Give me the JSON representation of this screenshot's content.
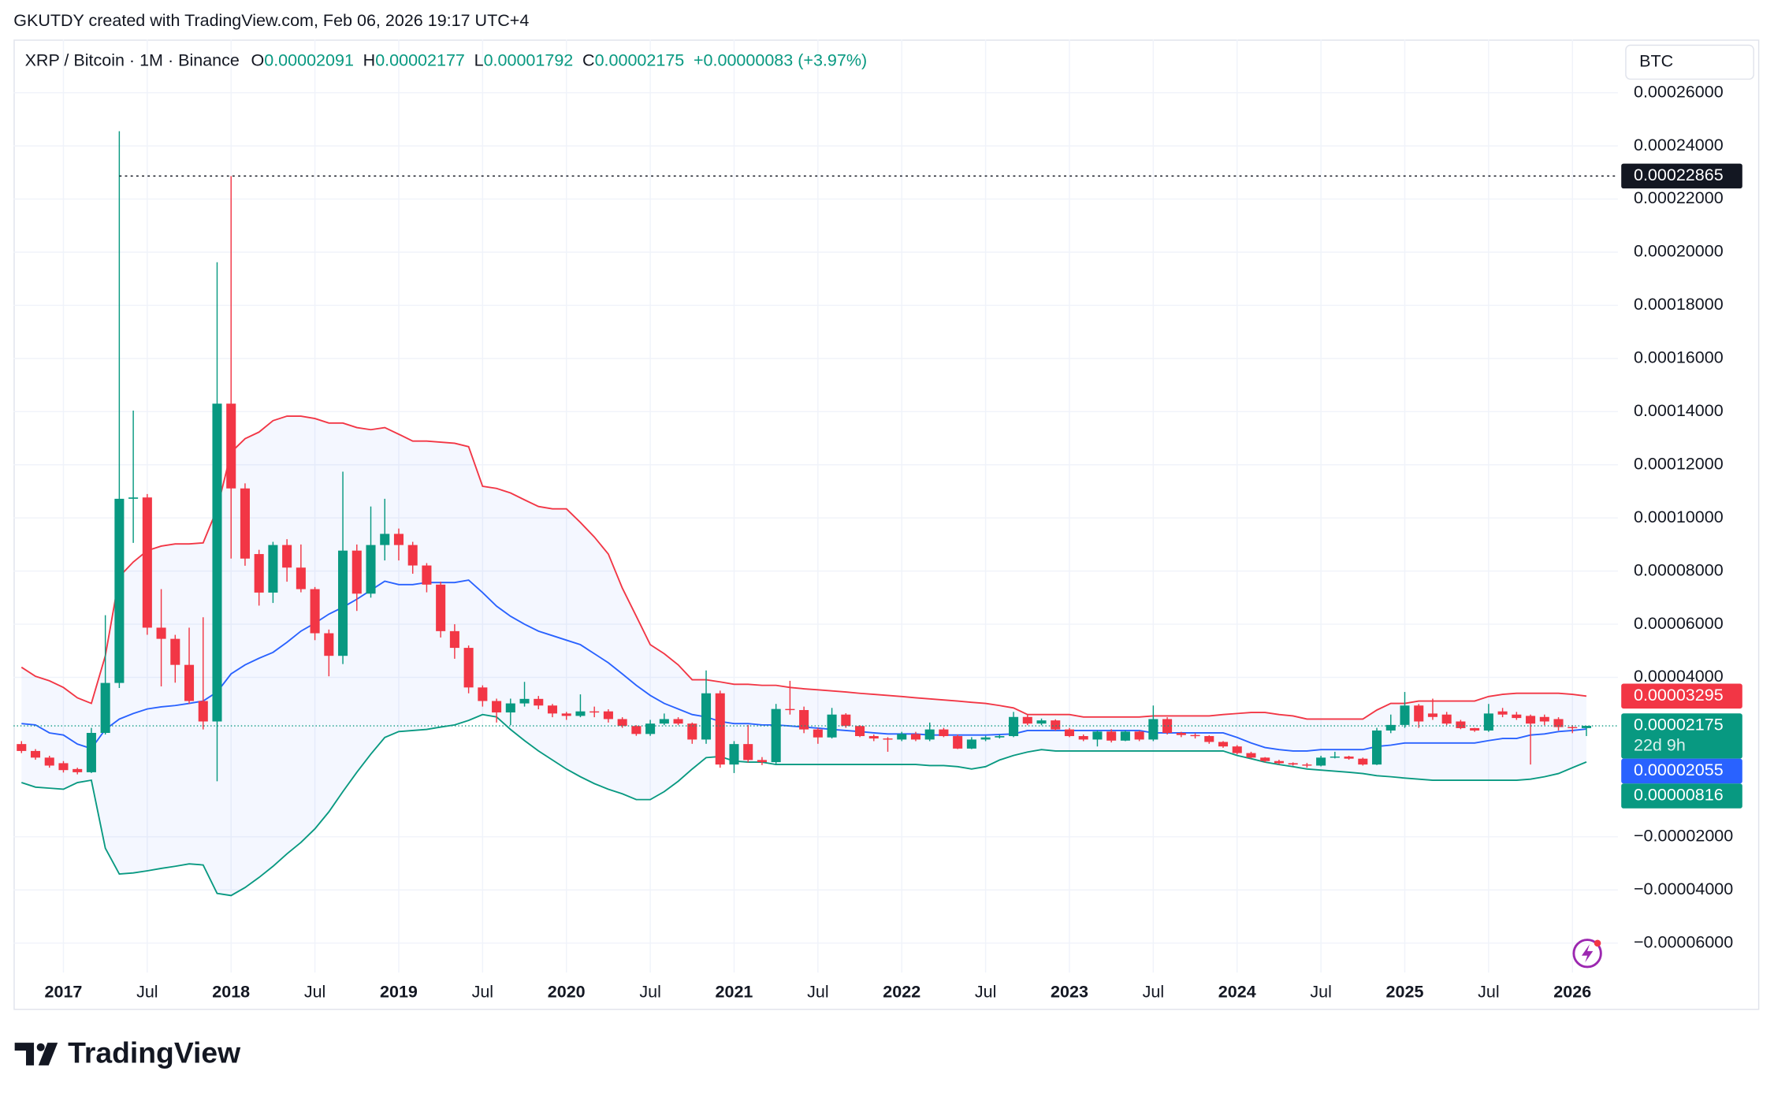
{
  "chart_data": {
    "type": "candlestick",
    "watermark": "GKUTDY created with TradingView.com, Feb 06, 2026 19:17 UTC+4",
    "symbol": "XRP / Bitcoin · 1M · Binance",
    "ohlc": [
      {
        "key": "O",
        "value": "0.00002091"
      },
      {
        "key": "H",
        "value": "0.00002177"
      },
      {
        "key": "L",
        "value": "0.00001792"
      },
      {
        "key": "C",
        "value": "0.00002175"
      }
    ],
    "change": "+0.00000083 (+3.97%)",
    "currency": "BTC",
    "brand": "TradingView",
    "up_color": "#089981",
    "down_color": "#f23645",
    "grid": true,
    "x": [
      "2016-10",
      "2016-11",
      "2016-12",
      "2017-01",
      "2017-02",
      "2017-03",
      "2017-04",
      "2017-05",
      "2017-06",
      "2017-07",
      "2017-08",
      "2017-09",
      "2017-10",
      "2017-11",
      "2017-12",
      "2018-01",
      "2018-02",
      "2018-03",
      "2018-04",
      "2018-05",
      "2018-06",
      "2018-07",
      "2018-08",
      "2018-09",
      "2018-10",
      "2018-11",
      "2018-12",
      "2019-01",
      "2019-02",
      "2019-03",
      "2019-04",
      "2019-05",
      "2019-06",
      "2019-07",
      "2019-08",
      "2019-09",
      "2019-10",
      "2019-11",
      "2019-12",
      "2020-01",
      "2020-02",
      "2020-03",
      "2020-04",
      "2020-05",
      "2020-06",
      "2020-07",
      "2020-08",
      "2020-09",
      "2020-10",
      "2020-11",
      "2020-12",
      "2021-01",
      "2021-02",
      "2021-03",
      "2021-04",
      "2021-05",
      "2021-06",
      "2021-07",
      "2021-08",
      "2021-09",
      "2021-10",
      "2021-11",
      "2021-12",
      "2022-01",
      "2022-02",
      "2022-03",
      "2022-04",
      "2022-05",
      "2022-06",
      "2022-07",
      "2022-08",
      "2022-09",
      "2022-10",
      "2022-11",
      "2022-12",
      "2023-01",
      "2023-02",
      "2023-03",
      "2023-04",
      "2023-05",
      "2023-06",
      "2023-07",
      "2023-08",
      "2023-09",
      "2023-10",
      "2023-11",
      "2023-12",
      "2024-01",
      "2024-02",
      "2024-03",
      "2024-04",
      "2024-05",
      "2024-06",
      "2024-07",
      "2024-08",
      "2024-09",
      "2024-10",
      "2024-11",
      "2024-12",
      "2025-01",
      "2025-02",
      "2025-03",
      "2025-04",
      "2025-05",
      "2025-06",
      "2025-07",
      "2025-08",
      "2025-09",
      "2025-10",
      "2025-11",
      "2025-12",
      "2026-01",
      "2026-02"
    ],
    "open": [
      1.49e-05,
      1.23e-05,
      9.8e-06,
      7.7e-06,
      5.5e-06,
      4.3e-06,
      1.91e-05,
      3.79e-05,
      0.0001072,
      0.0001077,
      5.87e-05,
      5.45e-05,
      4.47e-05,
      3.11e-05,
      2.34e-05,
      0.000143,
      0.0001111,
      8.64e-05,
      7.19e-05,
      8.98e-05,
      8.13e-05,
      7.32e-05,
      5.66e-05,
      4.81e-05,
      8.77e-05,
      7.15e-05,
      8.98e-05,
      9.4e-05,
      8.98e-05,
      8.21e-05,
      7.49e-05,
      5.74e-05,
      5.11e-05,
      3.62e-05,
      3.11e-05,
      2.68e-05,
      3.02e-05,
      3.19e-05,
      2.94e-05,
      2.64e-05,
      2.55e-05,
      2.72e-05,
      2.72e-05,
      2.43e-05,
      2.17e-05,
      1.87e-05,
      2.26e-05,
      2.43e-05,
      2.26e-05,
      1.66e-05,
      3.4e-05,
      7.2e-06,
      1.49e-05,
      8.9e-06,
      8.1e-06,
      2.81e-05,
      2.77e-05,
      2.04e-05,
      1.74e-05,
      2.6e-05,
      2.17e-05,
      1.79e-05,
      1.7e-05,
      1.66e-05,
      1.87e-05,
      1.66e-05,
      2.04e-05,
      1.79e-05,
      1.32e-05,
      1.66e-05,
      1.74e-05,
      1.79e-05,
      2.51e-05,
      2.26e-05,
      2.38e-05,
      2.04e-05,
      1.79e-05,
      1.66e-05,
      1.96e-05,
      1.62e-05,
      1.96e-05,
      1.66e-05,
      2.43e-05,
      1.91e-05,
      1.83e-05,
      1.79e-05,
      1.57e-05,
      1.4e-05,
      1.15e-05,
      9.8e-06,
      8.5e-06,
      7.7e-06,
      7.2e-06,
      6.8e-06,
      9.8e-06,
      1.02e-05,
      9.4e-06,
      7.2e-06,
      2e-05,
      2.21e-05,
      2.94e-05,
      2.64e-05,
      2.6e-05,
      2.34e-05,
      2.09e-05,
      2e-05,
      2.72e-05,
      2.6e-05,
      2.55e-05,
      2.51e-05,
      2.43e-05,
      2.13e-05,
      2.091e-05
    ],
    "high": [
      1.6e-05,
      1.3e-05,
      1.05e-05,
      8.5e-06,
      6e-06,
      2.1e-05,
      6.34e-05,
      0.0002455,
      0.0001404,
      0.000109,
      7.32e-05,
      5.6e-05,
      5.87e-05,
      6.26e-05,
      0.0001962,
      0.00022865,
      0.000113,
      8.8e-05,
      9.1e-05,
      9.2e-05,
      9e-05,
      7.4e-05,
      5.8e-05,
      0.0001174,
      9e-05,
      0.0001043,
      0.0001072,
      9.6e-05,
      9.1e-05,
      8.3e-05,
      7.6e-05,
      6e-05,
      5.2e-05,
      3.7e-05,
      3.2e-05,
      3.2e-05,
      3.83e-05,
      3.3e-05,
      3e-05,
      2.7e-05,
      3.36e-05,
      2.9e-05,
      2.8e-05,
      2.5e-05,
      2.2e-05,
      2.4e-05,
      2.64e-05,
      2.5e-05,
      2.3e-05,
      4.26e-05,
      3.5e-05,
      1.6e-05,
      2.21e-05,
      1e-05,
      3e-05,
      3.87e-05,
      2.9e-05,
      2.1e-05,
      2.85e-05,
      2.65e-05,
      2.2e-05,
      1.85e-05,
      1.75e-05,
      1.95e-05,
      1.95e-05,
      2.3e-05,
      2.1e-05,
      1.85e-05,
      1.75e-05,
      1.8e-05,
      1.85e-05,
      2.7e-05,
      2.6e-05,
      2.45e-05,
      2.42e-05,
      2.1e-05,
      1.85e-05,
      2e-05,
      2.05e-05,
      2e-05,
      2e-05,
      2.94e-05,
      2.5e-05,
      1.95e-05,
      1.9e-05,
      1.82e-05,
      1.6e-05,
      1.45e-05,
      1.2e-05,
      1e-05,
      9e-06,
      8e-06,
      7.8e-06,
      1.05e-05,
      1.2e-05,
      1.05e-05,
      9.8e-06,
      2.1e-05,
      2.6e-05,
      3.45e-05,
      3e-05,
      3.2e-05,
      2.7e-05,
      2.4e-05,
      2.1e-05,
      3e-05,
      2.85e-05,
      2.7e-05,
      2.6e-05,
      2.6e-05,
      2.5e-05,
      2.2e-05,
      2.177e-05
    ],
    "low": [
      1.15e-05,
      9e-06,
      6e-06,
      4.2e-06,
      3.5e-06,
      4e-06,
      1.85e-05,
      3.6e-05,
      9.06e-05,
      5.6e-05,
      3.66e-05,
      3.8e-05,
      3e-05,
      2.04e-05,
      9e-07,
      8.47e-05,
      8.2e-05,
      6.7e-05,
      6.8e-05,
      7.6e-05,
      7.2e-05,
      5.4e-05,
      4.04e-05,
      4.5e-05,
      6.5e-05,
      7e-05,
      8.4e-05,
      8.4e-05,
      7.9e-05,
      7.2e-05,
      5.5e-05,
      4.7e-05,
      3.4e-05,
      2.9e-05,
      2.3e-05,
      2.2e-05,
      2.9e-05,
      2.8e-05,
      2.5e-05,
      2.4e-05,
      2.5e-05,
      2.5e-05,
      2.3e-05,
      2.1e-05,
      1.8e-05,
      1.8e-05,
      2.2e-05,
      2.2e-05,
      1.5e-05,
      1.5e-05,
      6e-06,
      4e-06,
      8e-06,
      7e-06,
      7e-06,
      2.6e-05,
      1.9e-05,
      1.5e-05,
      1.7e-05,
      2.1e-05,
      1.75e-05,
      1.6e-05,
      1.2e-05,
      1.6e-05,
      1.6e-05,
      1.6e-05,
      1.75e-05,
      1.3e-05,
      1.3e-05,
      1.6e-05,
      1.7e-05,
      1.75e-05,
      2.2e-05,
      2.2e-05,
      2e-05,
      1.75e-05,
      1.6e-05,
      1.4e-05,
      1.55e-05,
      1.6e-05,
      1.6e-05,
      1.6e-05,
      1.85e-05,
      1.75e-05,
      1.7e-05,
      1.5e-05,
      1.35e-05,
      1.1e-05,
      9.5e-06,
      8e-06,
      7.2e-06,
      6.8e-06,
      6e-06,
      6.5e-06,
      9.5e-06,
      9e-06,
      6.8e-06,
      7e-06,
      1.9e-05,
      2.1e-05,
      2.1e-05,
      2.4e-05,
      2.2e-05,
      2.05e-05,
      1.95e-05,
      1.95e-05,
      2.5e-05,
      2.4e-05,
      7.2e-06,
      2.2e-05,
      2e-05,
      1.9e-05,
      1.792e-05
    ],
    "close": [
      1.23e-05,
      9.8e-06,
      6.8e-06,
      5.1e-06,
      4.3e-06,
      1.91e-05,
      3.79e-05,
      0.0001072,
      0.0001077,
      5.87e-05,
      5.45e-05,
      4.47e-05,
      3.11e-05,
      2.34e-05,
      0.000143,
      0.0001111,
      8.47e-05,
      7.19e-05,
      8.98e-05,
      8.13e-05,
      7.32e-05,
      5.66e-05,
      4.81e-05,
      8.77e-05,
      7.15e-05,
      8.98e-05,
      9.4e-05,
      8.98e-05,
      8.21e-05,
      7.49e-05,
      5.74e-05,
      5.11e-05,
      3.62e-05,
      3.11e-05,
      2.68e-05,
      3.02e-05,
      3.19e-05,
      2.94e-05,
      2.64e-05,
      2.55e-05,
      2.72e-05,
      2.68e-05,
      2.43e-05,
      2.17e-05,
      1.87e-05,
      2.26e-05,
      2.43e-05,
      2.26e-05,
      1.66e-05,
      3.4e-05,
      7.2e-06,
      1.49e-05,
      8.9e-06,
      8.1e-06,
      2.81e-05,
      2.77e-05,
      2.04e-05,
      1.74e-05,
      2.6e-05,
      2.17e-05,
      1.79e-05,
      1.7e-05,
      1.66e-05,
      1.87e-05,
      1.66e-05,
      2.04e-05,
      1.79e-05,
      1.32e-05,
      1.66e-05,
      1.74e-05,
      1.79e-05,
      2.51e-05,
      2.26e-05,
      2.38e-05,
      2.04e-05,
      1.79e-05,
      1.66e-05,
      1.96e-05,
      1.62e-05,
      1.96e-05,
      1.66e-05,
      2.43e-05,
      1.91e-05,
      1.83e-05,
      1.79e-05,
      1.57e-05,
      1.4e-05,
      1.15e-05,
      9.8e-06,
      8.5e-06,
      7.7e-06,
      7.2e-06,
      6.8e-06,
      9.8e-06,
      1.02e-05,
      9.4e-06,
      7.2e-06,
      2e-05,
      2.21e-05,
      2.94e-05,
      2.34e-05,
      2.51e-05,
      2.26e-05,
      2.09e-05,
      2e-05,
      2.64e-05,
      2.6e-05,
      2.47e-05,
      2.26e-05,
      2.34e-05,
      2.13e-05,
      2.09e-05,
      2.175e-05
    ],
    "bands": {
      "upper": {
        "color": "#f23645",
        "values": [
          4.38e-05,
          4.04e-05,
          3.87e-05,
          3.62e-05,
          3.23e-05,
          3.02e-05,
          4.81e-05,
          7.79e-05,
          8.34e-05,
          8.77e-05,
          8.94e-05,
          9.02e-05,
          9.02e-05,
          9.06e-05,
          0.0001034,
          0.0001247,
          0.0001298,
          0.0001323,
          0.0001366,
          0.0001383,
          0.0001383,
          0.0001374,
          0.0001357,
          0.0001357,
          0.000134,
          0.0001332,
          0.000134,
          0.0001315,
          0.0001289,
          0.0001289,
          0.0001285,
          0.0001281,
          0.0001268,
          0.0001119,
          0.0001111,
          0.0001094,
          0.0001068,
          0.0001043,
          0.0001034,
          0.0001034,
          9.83e-05,
          9.28e-05,
          8.64e-05,
          7.36e-05,
          6.3e-05,
          5.23e-05,
          4.89e-05,
          4.47e-05,
          3.91e-05,
          3.91e-05,
          3.83e-05,
          3.74e-05,
          3.74e-05,
          3.7e-05,
          3.7e-05,
          3.62e-05,
          3.57e-05,
          3.53e-05,
          3.49e-05,
          3.45e-05,
          3.4e-05,
          3.36e-05,
          3.32e-05,
          3.28e-05,
          3.23e-05,
          3.19e-05,
          3.15e-05,
          3.11e-05,
          3.06e-05,
          3.02e-05,
          2.94e-05,
          2.85e-05,
          2.6e-05,
          2.6e-05,
          2.6e-05,
          2.6e-05,
          2.51e-05,
          2.51e-05,
          2.51e-05,
          2.51e-05,
          2.51e-05,
          2.55e-05,
          2.55e-05,
          2.55e-05,
          2.55e-05,
          2.55e-05,
          2.6e-05,
          2.64e-05,
          2.68e-05,
          2.68e-05,
          2.6e-05,
          2.55e-05,
          2.43e-05,
          2.43e-05,
          2.43e-05,
          2.43e-05,
          2.43e-05,
          2.77e-05,
          3.02e-05,
          3.02e-05,
          3.11e-05,
          3.11e-05,
          3.11e-05,
          3.11e-05,
          3.11e-05,
          3.28e-05,
          3.36e-05,
          3.4e-05,
          3.4e-05,
          3.4e-05,
          3.4e-05,
          3.36e-05,
          3.295e-05
        ]
      },
      "middle": {
        "color": "#2962ff",
        "values": [
          2.26e-05,
          2.21e-05,
          1.91e-05,
          1.83e-05,
          1.49e-05,
          1.32e-05,
          2.04e-05,
          2.43e-05,
          2.64e-05,
          2.81e-05,
          2.89e-05,
          2.94e-05,
          3.02e-05,
          3.11e-05,
          3.45e-05,
          4.13e-05,
          4.47e-05,
          4.72e-05,
          4.94e-05,
          5.32e-05,
          5.74e-05,
          6.04e-05,
          6.38e-05,
          6.64e-05,
          6.94e-05,
          7.28e-05,
          7.62e-05,
          7.49e-05,
          7.49e-05,
          7.57e-05,
          7.57e-05,
          7.57e-05,
          7.66e-05,
          7.19e-05,
          6.68e-05,
          6.3e-05,
          6e-05,
          5.74e-05,
          5.57e-05,
          5.4e-05,
          5.23e-05,
          4.89e-05,
          4.55e-05,
          4.13e-05,
          3.7e-05,
          3.32e-05,
          3.02e-05,
          2.81e-05,
          2.6e-05,
          2.51e-05,
          2.34e-05,
          2.26e-05,
          2.26e-05,
          2.21e-05,
          2.21e-05,
          2.17e-05,
          2.13e-05,
          2.09e-05,
          2.04e-05,
          2e-05,
          1.96e-05,
          1.91e-05,
          1.87e-05,
          1.87e-05,
          1.87e-05,
          1.83e-05,
          1.83e-05,
          1.83e-05,
          1.83e-05,
          1.83e-05,
          1.85e-05,
          1.87e-05,
          2e-05,
          2e-05,
          2e-05,
          2e-05,
          2e-05,
          2e-05,
          2e-05,
          2e-05,
          2e-05,
          1.91e-05,
          1.91e-05,
          1.91e-05,
          1.91e-05,
          1.91e-05,
          1.91e-05,
          1.74e-05,
          1.53e-05,
          1.36e-05,
          1.28e-05,
          1.23e-05,
          1.23e-05,
          1.28e-05,
          1.28e-05,
          1.28e-05,
          1.28e-05,
          1.4e-05,
          1.45e-05,
          1.53e-05,
          1.53e-05,
          1.53e-05,
          1.53e-05,
          1.53e-05,
          1.53e-05,
          1.62e-05,
          1.7e-05,
          1.7e-05,
          1.83e-05,
          1.87e-05,
          1.96e-05,
          2e-05,
          2.055e-05
        ]
      },
      "lower": {
        "color": "#089981",
        "values": [
          4e-07,
          -1.3e-06,
          -1.7e-06,
          -2.1e-06,
          4e-07,
          1.3e-06,
          -2.43e-05,
          -3.4e-05,
          -3.36e-05,
          -3.28e-05,
          -3.19e-05,
          -3.11e-05,
          -3.02e-05,
          -3.06e-05,
          -4.13e-05,
          -4.21e-05,
          -3.91e-05,
          -3.53e-05,
          -3.11e-05,
          -2.64e-05,
          -2.21e-05,
          -1.7e-05,
          -1.06e-05,
          -3e-06,
          4.3e-06,
          1.11e-05,
          1.74e-05,
          1.96e-05,
          2e-05,
          2.04e-05,
          2.13e-05,
          2.21e-05,
          2.38e-05,
          2.6e-05,
          2.51e-05,
          2.04e-05,
          1.62e-05,
          1.23e-05,
          8.9e-06,
          5.5e-06,
          2.6e-06,
          0,
          -2.1e-06,
          -3.8e-06,
          -6e-06,
          -6e-06,
          -3e-06,
          9e-07,
          5.5e-06,
          9.8e-06,
          1.02e-05,
          8.5e-06,
          8.1e-06,
          8.1e-06,
          7.2e-06,
          7.2e-06,
          7.2e-06,
          7.2e-06,
          7.2e-06,
          7.2e-06,
          7.2e-06,
          7.2e-06,
          7.2e-06,
          7.2e-06,
          7.2e-06,
          6.8e-06,
          6.8e-06,
          6.4e-06,
          5.5e-06,
          6.4e-06,
          8.9e-06,
          1.06e-05,
          1.19e-05,
          1.28e-05,
          1.23e-05,
          1.23e-05,
          1.23e-05,
          1.23e-05,
          1.23e-05,
          1.23e-05,
          1.23e-05,
          1.23e-05,
          1.23e-05,
          1.23e-05,
          1.23e-05,
          1.23e-05,
          1.23e-05,
          1.06e-05,
          9.4e-06,
          8.1e-06,
          7.2e-06,
          6.4e-06,
          5.5e-06,
          5.1e-06,
          4.7e-06,
          4.3e-06,
          3.8e-06,
          3e-06,
          2.6e-06,
          2.1e-06,
          1.7e-06,
          1.3e-06,
          1.3e-06,
          1.3e-06,
          1.3e-06,
          1.3e-06,
          1.3e-06,
          1.3e-06,
          1.7e-06,
          2.6e-06,
          3.8e-06,
          6e-06,
          8.16e-06
        ]
      }
    },
    "ylim": [
      -7.11e-05,
      0.00028
    ],
    "yticks": [
      {
        "value": 0.00026,
        "label": "0.00026000"
      },
      {
        "value": 0.00024,
        "label": "0.00024000"
      },
      {
        "value": 0.00022,
        "label": "0.00022000"
      },
      {
        "value": 0.0002,
        "label": "0.00020000"
      },
      {
        "value": 0.00018,
        "label": "0.00018000"
      },
      {
        "value": 0.00016,
        "label": "0.00016000"
      },
      {
        "value": 0.00014,
        "label": "0.00014000"
      },
      {
        "value": 0.00012,
        "label": "0.00012000"
      },
      {
        "value": 0.0001,
        "label": "0.00010000"
      },
      {
        "value": 8e-05,
        "label": "0.00008000"
      },
      {
        "value": 6e-05,
        "label": "0.00006000"
      },
      {
        "value": 4e-05,
        "label": "0.00004000"
      },
      {
        "value": -2e-05,
        "label": "−0.00002000"
      },
      {
        "value": -4e-05,
        "label": "−0.00004000"
      },
      {
        "value": -6e-05,
        "label": "−0.00006000"
      }
    ],
    "xticks": [
      {
        "value": "2017-01",
        "label": "2017"
      },
      {
        "value": "2017-07",
        "label": "Jul"
      },
      {
        "value": "2018-01",
        "label": "2018"
      },
      {
        "value": "2018-07",
        "label": "Jul"
      },
      {
        "value": "2019-01",
        "label": "2019"
      },
      {
        "value": "2019-07",
        "label": "Jul"
      },
      {
        "value": "2020-01",
        "label": "2020"
      },
      {
        "value": "2020-07",
        "label": "Jul"
      },
      {
        "value": "2021-01",
        "label": "2021"
      },
      {
        "value": "2021-07",
        "label": "Jul"
      },
      {
        "value": "2022-01",
        "label": "2022"
      },
      {
        "value": "2022-07",
        "label": "Jul"
      },
      {
        "value": "2023-01",
        "label": "2023"
      },
      {
        "value": "2023-07",
        "label": "Jul"
      },
      {
        "value": "2024-01",
        "label": "2024"
      },
      {
        "value": "2024-07",
        "label": "Jul"
      },
      {
        "value": "2025-01",
        "label": "2025"
      },
      {
        "value": "2025-07",
        "label": "Jul"
      },
      {
        "value": "2026-01",
        "label": "2026"
      }
    ],
    "price_labels": [
      {
        "value": 0.00022865,
        "label": "0.00022865",
        "color": "#131722",
        "line": "dashed"
      },
      {
        "value": 3.295e-05,
        "label": "0.00003295",
        "color": "#f23645"
      },
      {
        "value": 2.175e-05,
        "label": "0.00002175",
        "color": "#089981",
        "line": "dotted",
        "countdown": "22d 9h"
      },
      {
        "value": 2.055e-05,
        "label": "0.00002055",
        "color": "#2962ff"
      },
      {
        "value": 8.16e-06,
        "label": "0.00000816",
        "color": "#089981"
      }
    ]
  }
}
